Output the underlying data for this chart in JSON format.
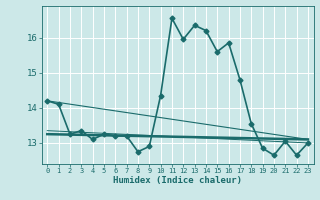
{
  "xlabel": "Humidex (Indice chaleur)",
  "background_color": "#cce8e8",
  "grid_color": "#b0d4d4",
  "line_color": "#1a6b6b",
  "xmin": -0.5,
  "xmax": 23.5,
  "ymin": 12.4,
  "ymax": 16.9,
  "yticks": [
    13,
    14,
    15,
    16
  ],
  "xticks": [
    0,
    1,
    2,
    3,
    4,
    5,
    6,
    7,
    8,
    9,
    10,
    11,
    12,
    13,
    14,
    15,
    16,
    17,
    18,
    19,
    20,
    21,
    22,
    23
  ],
  "series": [
    {
      "x": [
        0,
        1,
        2,
        3,
        4,
        5,
        6,
        7,
        8,
        9,
        10,
        11,
        12,
        13,
        14,
        15,
        16,
        17,
        18,
        19,
        20,
        21,
        22,
        23
      ],
      "y": [
        14.2,
        14.1,
        13.25,
        13.35,
        13.1,
        13.25,
        13.2,
        13.2,
        12.75,
        12.9,
        14.35,
        16.55,
        15.95,
        16.35,
        16.2,
        15.6,
        15.85,
        14.8,
        13.55,
        12.85,
        12.65,
        13.05,
        12.65,
        13.0
      ],
      "marker": "D",
      "markersize": 2.5,
      "linewidth": 1.2
    },
    {
      "x": [
        0,
        23
      ],
      "y": [
        14.2,
        13.1
      ],
      "marker": null,
      "linewidth": 0.8
    },
    {
      "x": [
        0,
        23
      ],
      "y": [
        13.25,
        13.1
      ],
      "marker": null,
      "linewidth": 1.8
    },
    {
      "x": [
        0,
        23
      ],
      "y": [
        13.35,
        13.0
      ],
      "marker": null,
      "linewidth": 0.7
    }
  ]
}
